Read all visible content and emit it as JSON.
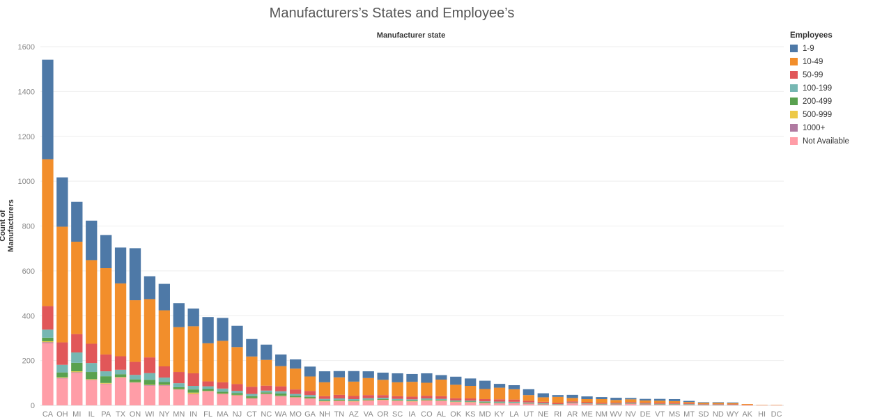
{
  "chart_data": {
    "type": "bar",
    "stacked": true,
    "title": "Manufacturers’s States and Employee’s",
    "header": "Manufacturer state",
    "ylabel": "Count of Manufacturers",
    "xlabel": "",
    "ylim": [
      0,
      1600
    ],
    "yticks": [
      0,
      200,
      400,
      600,
      800,
      1000,
      1200,
      1400,
      1600
    ],
    "grid": true,
    "legend": {
      "title": "Employees",
      "position": "right"
    },
    "categories": [
      "CA",
      "OH",
      "MI",
      "IL",
      "PA",
      "TX",
      "ON",
      "WI",
      "NY",
      "MN",
      "IN",
      "FL",
      "MA",
      "NJ",
      "CT",
      "NC",
      "WA",
      "MO",
      "GA",
      "NH",
      "TN",
      "AZ",
      "VA",
      "OR",
      "SC",
      "IA",
      "CO",
      "AL",
      "OK",
      "KS",
      "MD",
      "KY",
      "LA",
      "UT",
      "NE",
      "RI",
      "AR",
      "ME",
      "NM",
      "WV",
      "NV",
      "DE",
      "VT",
      "MS",
      "MT",
      "SD",
      "ND",
      "WY",
      "AK",
      "HI",
      "DC"
    ],
    "series": [
      {
        "name": "Not Available",
        "color": "#ff9da7",
        "values": [
          278,
          120,
          145,
          112,
          95,
          122,
          100,
          88,
          88,
          70,
          50,
          62,
          50,
          44,
          30,
          50,
          40,
          35,
          30,
          18,
          20,
          18,
          22,
          24,
          20,
          18,
          22,
          20,
          15,
          14,
          10,
          10,
          10,
          8,
          5,
          3,
          10,
          6,
          4,
          5,
          8,
          5,
          4,
          4,
          3,
          2,
          2,
          2,
          1,
          1,
          1
        ]
      },
      {
        "name": "1000+",
        "color": "#b07aa1",
        "values": [
          4,
          2,
          3,
          2,
          2,
          2,
          2,
          2,
          2,
          1,
          1,
          1,
          1,
          1,
          1,
          1,
          1,
          1,
          1,
          0,
          0,
          0,
          0,
          0,
          0,
          0,
          0,
          0,
          0,
          0,
          0,
          0,
          0,
          0,
          0,
          0,
          0,
          0,
          0,
          0,
          0,
          0,
          0,
          0,
          0,
          0,
          0,
          0,
          0,
          0,
          0
        ]
      },
      {
        "name": "500-999",
        "color": "#edc948",
        "values": [
          4,
          3,
          4,
          3,
          3,
          3,
          2,
          2,
          2,
          2,
          6,
          2,
          2,
          2,
          2,
          1,
          2,
          1,
          1,
          1,
          1,
          1,
          1,
          1,
          1,
          1,
          1,
          1,
          1,
          1,
          1,
          0,
          0,
          0,
          0,
          0,
          0,
          0,
          0,
          0,
          0,
          0,
          0,
          0,
          0,
          0,
          0,
          0,
          0,
          0,
          0
        ]
      },
      {
        "name": "200-499",
        "color": "#59a14f",
        "values": [
          16,
          22,
          38,
          32,
          30,
          12,
          12,
          22,
          12,
          8,
          14,
          8,
          8,
          8,
          8,
          6,
          10,
          6,
          6,
          4,
          4,
          3,
          3,
          3,
          3,
          3,
          3,
          3,
          2,
          2,
          3,
          3,
          2,
          2,
          2,
          1,
          1,
          1,
          1,
          1,
          1,
          1,
          1,
          1,
          1,
          1,
          1,
          0,
          0,
          0,
          0
        ]
      },
      {
        "name": "100-199",
        "color": "#76b7b2",
        "values": [
          36,
          34,
          46,
          40,
          22,
          20,
          20,
          30,
          20,
          18,
          16,
          12,
          14,
          10,
          10,
          8,
          10,
          8,
          8,
          6,
          6,
          6,
          6,
          6,
          5,
          5,
          5,
          5,
          4,
          4,
          4,
          4,
          4,
          3,
          3,
          2,
          2,
          2,
          2,
          2,
          2,
          2,
          2,
          2,
          2,
          1,
          1,
          1,
          0,
          0,
          0
        ]
      },
      {
        "name": "50-99",
        "color": "#e15759",
        "values": [
          105,
          100,
          82,
          86,
          75,
          60,
          58,
          70,
          50,
          50,
          56,
          22,
          28,
          30,
          32,
          22,
          22,
          20,
          18,
          12,
          16,
          14,
          14,
          12,
          12,
          12,
          12,
          12,
          10,
          10,
          10,
          10,
          10,
          8,
          6,
          5,
          5,
          5,
          4,
          4,
          4,
          4,
          4,
          4,
          3,
          2,
          2,
          2,
          1,
          0,
          0
        ]
      },
      {
        "name": "10-49",
        "color": "#f28e2b",
        "values": [
          655,
          516,
          412,
          373,
          385,
          325,
          275,
          260,
          250,
          200,
          210,
          170,
          185,
          165,
          135,
          115,
          90,
          93,
          65,
          62,
          78,
          64,
          76,
          68,
          62,
          66,
          58,
          74,
          60,
          56,
          45,
          52,
          46,
          25,
          20,
          27,
          15,
          14,
          17,
          12,
          12,
          10,
          10,
          8,
          6,
          5,
          5,
          5,
          4,
          1,
          1
        ]
      },
      {
        "name": "1-9",
        "color": "#4e79a7",
        "values": [
          444,
          220,
          178,
          176,
          148,
          160,
          232,
          102,
          118,
          107,
          79,
          117,
          102,
          95,
          78,
          68,
          52,
          41,
          44,
          49,
          28,
          47,
          30,
          32,
          40,
          35,
          42,
          20,
          36,
          33,
          37,
          17,
          18,
          26,
          18,
          8,
          14,
          12,
          9,
          10,
          6,
          7,
          8,
          9,
          5,
          3,
          3,
          3,
          0,
          0,
          0
        ]
      }
    ]
  }
}
